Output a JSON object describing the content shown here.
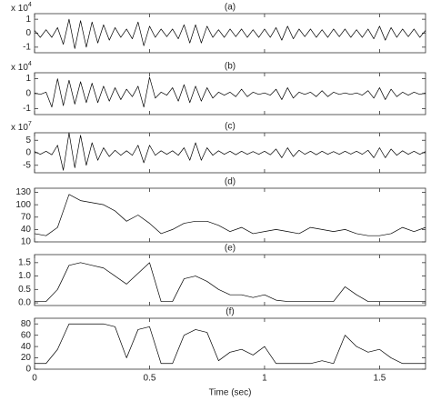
{
  "chart_data": [
    {
      "type": "line",
      "title": "(a)",
      "scale_label": "x 10",
      "scale_exponent": "4",
      "color": "#000000",
      "x": [
        0,
        0.025,
        0.05,
        0.075,
        0.1,
        0.125,
        0.15,
        0.175,
        0.2,
        0.225,
        0.25,
        0.275,
        0.3,
        0.325,
        0.35,
        0.375,
        0.4,
        0.425,
        0.45,
        0.475,
        0.5,
        0.525,
        0.55,
        0.575,
        0.6,
        0.625,
        0.65,
        0.675,
        0.7,
        0.725,
        0.75,
        0.775,
        0.8,
        0.825,
        0.85,
        0.875,
        0.9,
        0.925,
        0.95,
        0.975,
        1.0,
        1.025,
        1.05,
        1.075,
        1.1,
        1.125,
        1.15,
        1.175,
        1.2,
        1.225,
        1.25,
        1.275,
        1.3,
        1.325,
        1.35,
        1.375,
        1.4,
        1.425,
        1.45,
        1.475,
        1.5,
        1.525,
        1.55,
        1.575,
        1.6,
        1.625,
        1.65,
        1.675,
        1.7
      ],
      "values": [
        0.2,
        -0.3,
        0.25,
        -0.3,
        0.4,
        -0.8,
        1.0,
        -1.1,
        0.9,
        -1.0,
        0.8,
        -0.7,
        0.6,
        -0.5,
        0.4,
        -0.3,
        0.3,
        -0.4,
        0.8,
        -0.9,
        0.5,
        -0.3,
        0.3,
        -0.25,
        0.3,
        -0.4,
        0.6,
        -0.7,
        0.6,
        -0.7,
        0.5,
        -0.3,
        0.25,
        -0.3,
        0.3,
        -0.25,
        0.3,
        -0.3,
        0.25,
        -0.3,
        0.3,
        -0.3,
        0.4,
        -0.5,
        0.5,
        -0.4,
        0.3,
        -0.25,
        0.3,
        -0.3,
        0.25,
        -0.3,
        0.3,
        -0.25,
        0.3,
        -0.3,
        0.25,
        -0.3,
        0.3,
        -0.4,
        0.5,
        -0.5,
        0.4,
        -0.3,
        0.3,
        -0.25,
        0.3,
        -0.3,
        0.2
      ],
      "xlim": [
        0,
        1.7
      ],
      "xticks": [
        0,
        0.5,
        1,
        1.5
      ],
      "show_xtick_labels": false,
      "ylim": [
        -1.4,
        1.4
      ],
      "yticks": [
        -1,
        0,
        1
      ]
    },
    {
      "type": "line",
      "title": "(b)",
      "scale_label": "x 10",
      "scale_exponent": "4",
      "color": "#000000",
      "x": [
        0,
        0.025,
        0.05,
        0.075,
        0.1,
        0.125,
        0.15,
        0.175,
        0.2,
        0.225,
        0.25,
        0.275,
        0.3,
        0.325,
        0.35,
        0.375,
        0.4,
        0.425,
        0.45,
        0.475,
        0.5,
        0.525,
        0.55,
        0.575,
        0.6,
        0.625,
        0.65,
        0.675,
        0.7,
        0.725,
        0.75,
        0.775,
        0.8,
        0.825,
        0.85,
        0.875,
        0.9,
        0.925,
        0.95,
        0.975,
        1.0,
        1.025,
        1.05,
        1.075,
        1.1,
        1.125,
        1.15,
        1.175,
        1.2,
        1.225,
        1.25,
        1.275,
        1.3,
        1.325,
        1.35,
        1.375,
        1.4,
        1.425,
        1.45,
        1.475,
        1.5,
        1.525,
        1.55,
        1.575,
        1.6,
        1.625,
        1.65,
        1.675,
        1.7
      ],
      "values": [
        0.05,
        -0.05,
        0.1,
        -0.9,
        1.0,
        -0.8,
        0.9,
        -0.7,
        0.8,
        -0.6,
        0.7,
        -0.6,
        0.5,
        -0.5,
        0.4,
        -0.4,
        0.3,
        -0.2,
        0.5,
        -0.9,
        1.1,
        -0.3,
        0.1,
        -0.1,
        0.4,
        -0.5,
        0.6,
        -0.6,
        0.5,
        -0.5,
        0.4,
        -0.3,
        0.1,
        -0.1,
        0.1,
        -0.2,
        0.3,
        -0.2,
        0.1,
        -0.05,
        0.05,
        -0.1,
        0.3,
        -0.4,
        0.4,
        -0.3,
        0.1,
        -0.05,
        0.1,
        -0.2,
        0.2,
        -0.2,
        0.1,
        -0.05,
        0.05,
        -0.05,
        0.05,
        -0.1,
        0.2,
        -0.3,
        0.4,
        -0.4,
        0.3,
        -0.2,
        0.1,
        -0.1,
        0.1,
        -0.05,
        0.05
      ],
      "xlim": [
        0,
        1.7
      ],
      "xticks": [
        0,
        0.5,
        1,
        1.5
      ],
      "show_xtick_labels": false,
      "ylim": [
        -1.4,
        1.4
      ],
      "yticks": [
        -1,
        0,
        1
      ]
    },
    {
      "type": "line",
      "title": "(c)",
      "scale_label": "x 10",
      "scale_exponent": "7",
      "color": "#000000",
      "x": [
        0,
        0.025,
        0.05,
        0.075,
        0.1,
        0.125,
        0.15,
        0.175,
        0.2,
        0.225,
        0.25,
        0.275,
        0.3,
        0.325,
        0.35,
        0.375,
        0.4,
        0.425,
        0.45,
        0.475,
        0.5,
        0.525,
        0.55,
        0.575,
        0.6,
        0.625,
        0.65,
        0.675,
        0.7,
        0.725,
        0.75,
        0.775,
        0.8,
        0.825,
        0.85,
        0.875,
        0.9,
        0.925,
        0.95,
        0.975,
        1.0,
        1.025,
        1.05,
        1.075,
        1.1,
        1.125,
        1.15,
        1.175,
        1.2,
        1.225,
        1.25,
        1.275,
        1.3,
        1.325,
        1.35,
        1.375,
        1.4,
        1.425,
        1.45,
        1.475,
        1.5,
        1.525,
        1.55,
        1.575,
        1.6,
        1.625,
        1.65,
        1.675,
        1.7
      ],
      "values": [
        0.5,
        -0.6,
        0.6,
        -0.8,
        3,
        -7,
        8,
        -6,
        7,
        -5,
        4,
        -3,
        2,
        -1.5,
        1,
        -1,
        0.8,
        -1,
        3,
        -4,
        3,
        -1,
        0.8,
        -0.6,
        0.8,
        -1,
        2,
        -3,
        4,
        -3,
        2,
        -1,
        0.8,
        -0.6,
        0.6,
        -0.8,
        0.6,
        -0.6,
        0.5,
        -0.6,
        0.6,
        -0.8,
        1.5,
        -2,
        2,
        -1.5,
        1,
        -0.6,
        0.6,
        -0.8,
        0.6,
        -0.6,
        0.5,
        -0.6,
        0.6,
        -0.5,
        0.6,
        -0.6,
        1,
        -2,
        2,
        -2,
        1.5,
        -1,
        0.8,
        -0.6,
        0.6,
        -0.6,
        0.5
      ],
      "xlim": [
        0,
        1.7
      ],
      "xticks": [
        0,
        0.5,
        1,
        1.5
      ],
      "show_xtick_labels": false,
      "ylim": [
        -8,
        8
      ],
      "yticks": [
        -5,
        0,
        5
      ]
    },
    {
      "type": "line",
      "title": "(d)",
      "color": "#000000",
      "x": [
        0,
        0.05,
        0.1,
        0.15,
        0.2,
        0.25,
        0.3,
        0.35,
        0.4,
        0.45,
        0.5,
        0.55,
        0.6,
        0.65,
        0.7,
        0.75,
        0.8,
        0.85,
        0.9,
        0.95,
        1.0,
        1.05,
        1.1,
        1.15,
        1.2,
        1.25,
        1.3,
        1.35,
        1.4,
        1.45,
        1.5,
        1.55,
        1.6,
        1.65,
        1.7
      ],
      "values": [
        30,
        25,
        45,
        125,
        110,
        105,
        100,
        85,
        60,
        75,
        55,
        30,
        40,
        55,
        60,
        60,
        50,
        35,
        45,
        30,
        35,
        40,
        35,
        30,
        45,
        40,
        35,
        40,
        30,
        25,
        25,
        30,
        45,
        35,
        45
      ],
      "xlim": [
        0,
        1.7
      ],
      "xticks": [
        0,
        0.5,
        1,
        1.5
      ],
      "show_xtick_labels": false,
      "ylim": [
        10,
        140
      ],
      "yticks": [
        10,
        40,
        70,
        100,
        130
      ]
    },
    {
      "type": "line",
      "title": "(e)",
      "color": "#000000",
      "x": [
        0,
        0.05,
        0.1,
        0.15,
        0.2,
        0.25,
        0.3,
        0.35,
        0.4,
        0.45,
        0.5,
        0.55,
        0.6,
        0.65,
        0.7,
        0.75,
        0.8,
        0.85,
        0.9,
        0.95,
        1.0,
        1.05,
        1.1,
        1.15,
        1.2,
        1.25,
        1.3,
        1.35,
        1.4,
        1.45,
        1.5,
        1.55,
        1.6,
        1.65,
        1.7
      ],
      "values": [
        0.05,
        0.05,
        0.5,
        1.4,
        1.5,
        1.4,
        1.3,
        1.0,
        0.7,
        1.1,
        1.5,
        0.05,
        0.05,
        0.9,
        1.0,
        0.8,
        0.5,
        0.3,
        0.3,
        0.2,
        0.3,
        0.1,
        0.05,
        0.05,
        0.05,
        0.05,
        0.05,
        0.6,
        0.3,
        0.05,
        0.05,
        0.05,
        0.05,
        0.05,
        0.05
      ],
      "xlim": [
        0,
        1.7
      ],
      "xticks": [
        0,
        0.5,
        1,
        1.5
      ],
      "show_xtick_labels": false,
      "ylim": [
        -0.1,
        1.8
      ],
      "yticks": [
        {
          "value": 0,
          "label": "0.0"
        },
        {
          "value": 0.5,
          "label": "0.5"
        },
        {
          "value": 1,
          "label": "1.0"
        },
        {
          "value": 1.5,
          "label": "1.5"
        }
      ]
    },
    {
      "type": "line",
      "title": "(f)",
      "color": "#000000",
      "xlabel": "Time (sec)",
      "x": [
        0,
        0.05,
        0.1,
        0.15,
        0.2,
        0.25,
        0.3,
        0.35,
        0.4,
        0.45,
        0.5,
        0.55,
        0.6,
        0.65,
        0.7,
        0.75,
        0.8,
        0.85,
        0.9,
        0.95,
        1.0,
        1.05,
        1.1,
        1.15,
        1.2,
        1.25,
        1.3,
        1.35,
        1.4,
        1.45,
        1.5,
        1.55,
        1.6,
        1.65,
        1.7
      ],
      "values": [
        10,
        10,
        35,
        80,
        80,
        80,
        80,
        75,
        20,
        70,
        75,
        10,
        10,
        60,
        70,
        65,
        15,
        30,
        35,
        25,
        40,
        10,
        10,
        10,
        10,
        15,
        10,
        60,
        40,
        30,
        35,
        20,
        10,
        10,
        10
      ],
      "xlim": [
        0,
        1.7
      ],
      "xticks": [
        0,
        0.5,
        1,
        1.5
      ],
      "show_xtick_labels": true,
      "ylim": [
        0,
        90
      ],
      "yticks": [
        0,
        20,
        40,
        60,
        80
      ]
    }
  ]
}
